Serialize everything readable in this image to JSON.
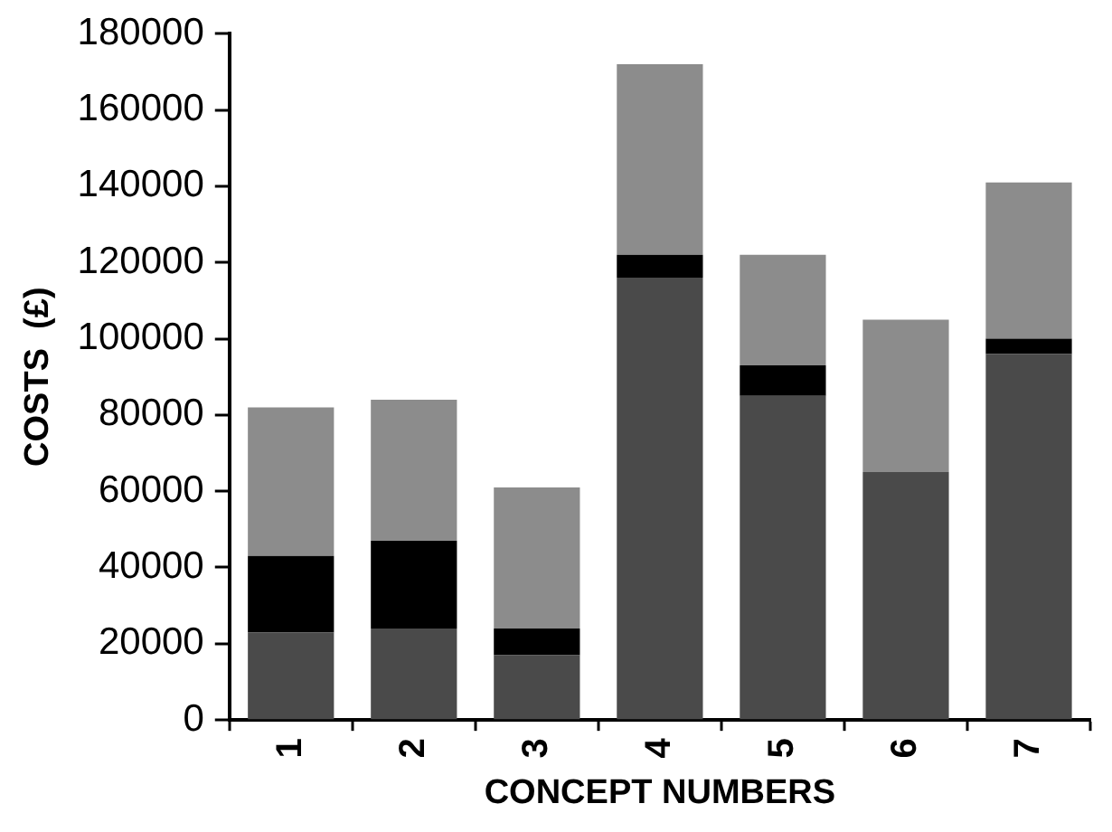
{
  "chart_data": {
    "type": "bar",
    "stacked": true,
    "xlabel": "CONCEPT NUMBERS",
    "ylabel": "COSTS  (£)",
    "categories": [
      "1",
      "2",
      "3",
      "4",
      "5",
      "6",
      "7"
    ],
    "series": [
      {
        "color": "#4a4a4a",
        "values": [
          23000,
          24000,
          17000,
          116000,
          85000,
          65000,
          96000
        ]
      },
      {
        "color": "#000000",
        "values": [
          20000,
          23000,
          7000,
          6000,
          8000,
          0,
          4000
        ]
      },
      {
        "color": "#8c8c8c",
        "values": [
          39000,
          37000,
          37000,
          50000,
          29000,
          40000,
          41000
        ]
      }
    ],
    "ylim": [
      0,
      180000
    ],
    "yticks": [
      0,
      20000,
      40000,
      60000,
      80000,
      100000,
      120000,
      140000,
      160000,
      180000
    ],
    "grid": false,
    "legend": false
  }
}
